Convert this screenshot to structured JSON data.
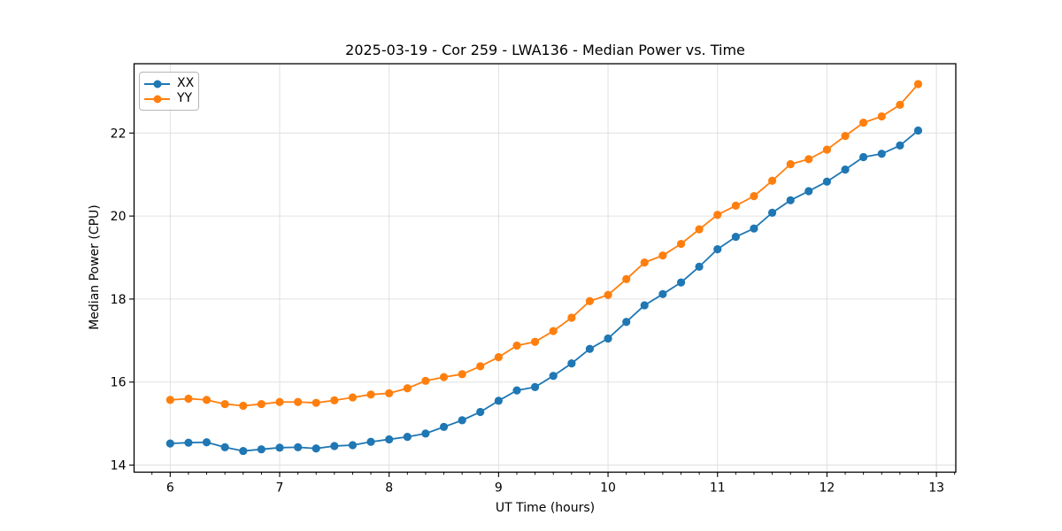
{
  "window": {
    "background": "#ffffff"
  },
  "chart_data": {
    "type": "line",
    "title": "2025-03-19 - Cor 259 - LWA136 - Median Power vs. Time",
    "xlabel": "UT Time (hours)",
    "ylabel": "Median Power (CPU)",
    "xlim": [
      5.67,
      13.177
    ],
    "ylim": [
      13.83,
      23.67
    ],
    "x_major_ticks": [
      6,
      7,
      8,
      9,
      10,
      11,
      12,
      13
    ],
    "x_tick_labels": [
      "6",
      "7",
      "8",
      "9",
      "10",
      "11",
      "12",
      "13"
    ],
    "x_minor_interval": 0.16667,
    "y_major_ticks": [
      14,
      16,
      18,
      20,
      22
    ],
    "y_tick_labels": [
      "14",
      "16",
      "18",
      "20",
      "22"
    ],
    "grid": true,
    "legend_position": "upper-left",
    "colors": {
      "grid": "#e0e0e0",
      "spine": "#000000",
      "tick": "#000000",
      "text": "#000000"
    },
    "x": [
      6.0,
      6.167,
      6.333,
      6.5,
      6.667,
      6.833,
      7.0,
      7.167,
      7.333,
      7.5,
      7.667,
      7.833,
      8.0,
      8.167,
      8.333,
      8.5,
      8.667,
      8.833,
      9.0,
      9.167,
      9.333,
      9.5,
      9.667,
      9.833,
      10.0,
      10.167,
      10.333,
      10.5,
      10.667,
      10.833,
      11.0,
      11.167,
      11.333,
      11.5,
      11.667,
      11.833,
      12.0,
      12.167,
      12.333,
      12.5,
      12.667,
      12.833
    ],
    "series": [
      {
        "name": "XX",
        "color": "#1f77b4",
        "values": [
          14.52,
          14.54,
          14.55,
          14.43,
          14.34,
          14.38,
          14.42,
          14.43,
          14.4,
          14.46,
          14.48,
          14.56,
          14.62,
          14.68,
          14.76,
          14.92,
          15.08,
          15.28,
          15.55,
          15.8,
          15.88,
          16.15,
          16.45,
          16.8,
          17.05,
          17.45,
          17.85,
          18.12,
          18.4,
          18.78,
          19.2,
          19.5,
          19.7,
          20.08,
          20.38,
          20.6,
          20.83,
          21.12,
          21.42,
          21.5,
          21.7,
          22.06
        ]
      },
      {
        "name": "YY",
        "color": "#ff7f0e",
        "values": [
          15.57,
          15.6,
          15.57,
          15.47,
          15.43,
          15.47,
          15.52,
          15.52,
          15.5,
          15.56,
          15.63,
          15.7,
          15.73,
          15.85,
          16.03,
          16.12,
          16.19,
          16.38,
          16.6,
          16.88,
          16.97,
          17.23,
          17.55,
          17.95,
          18.1,
          18.48,
          18.88,
          19.05,
          19.33,
          19.68,
          20.03,
          20.25,
          20.48,
          20.85,
          21.25,
          21.37,
          21.6,
          21.93,
          22.25,
          22.4,
          22.68,
          23.18
        ]
      }
    ]
  }
}
